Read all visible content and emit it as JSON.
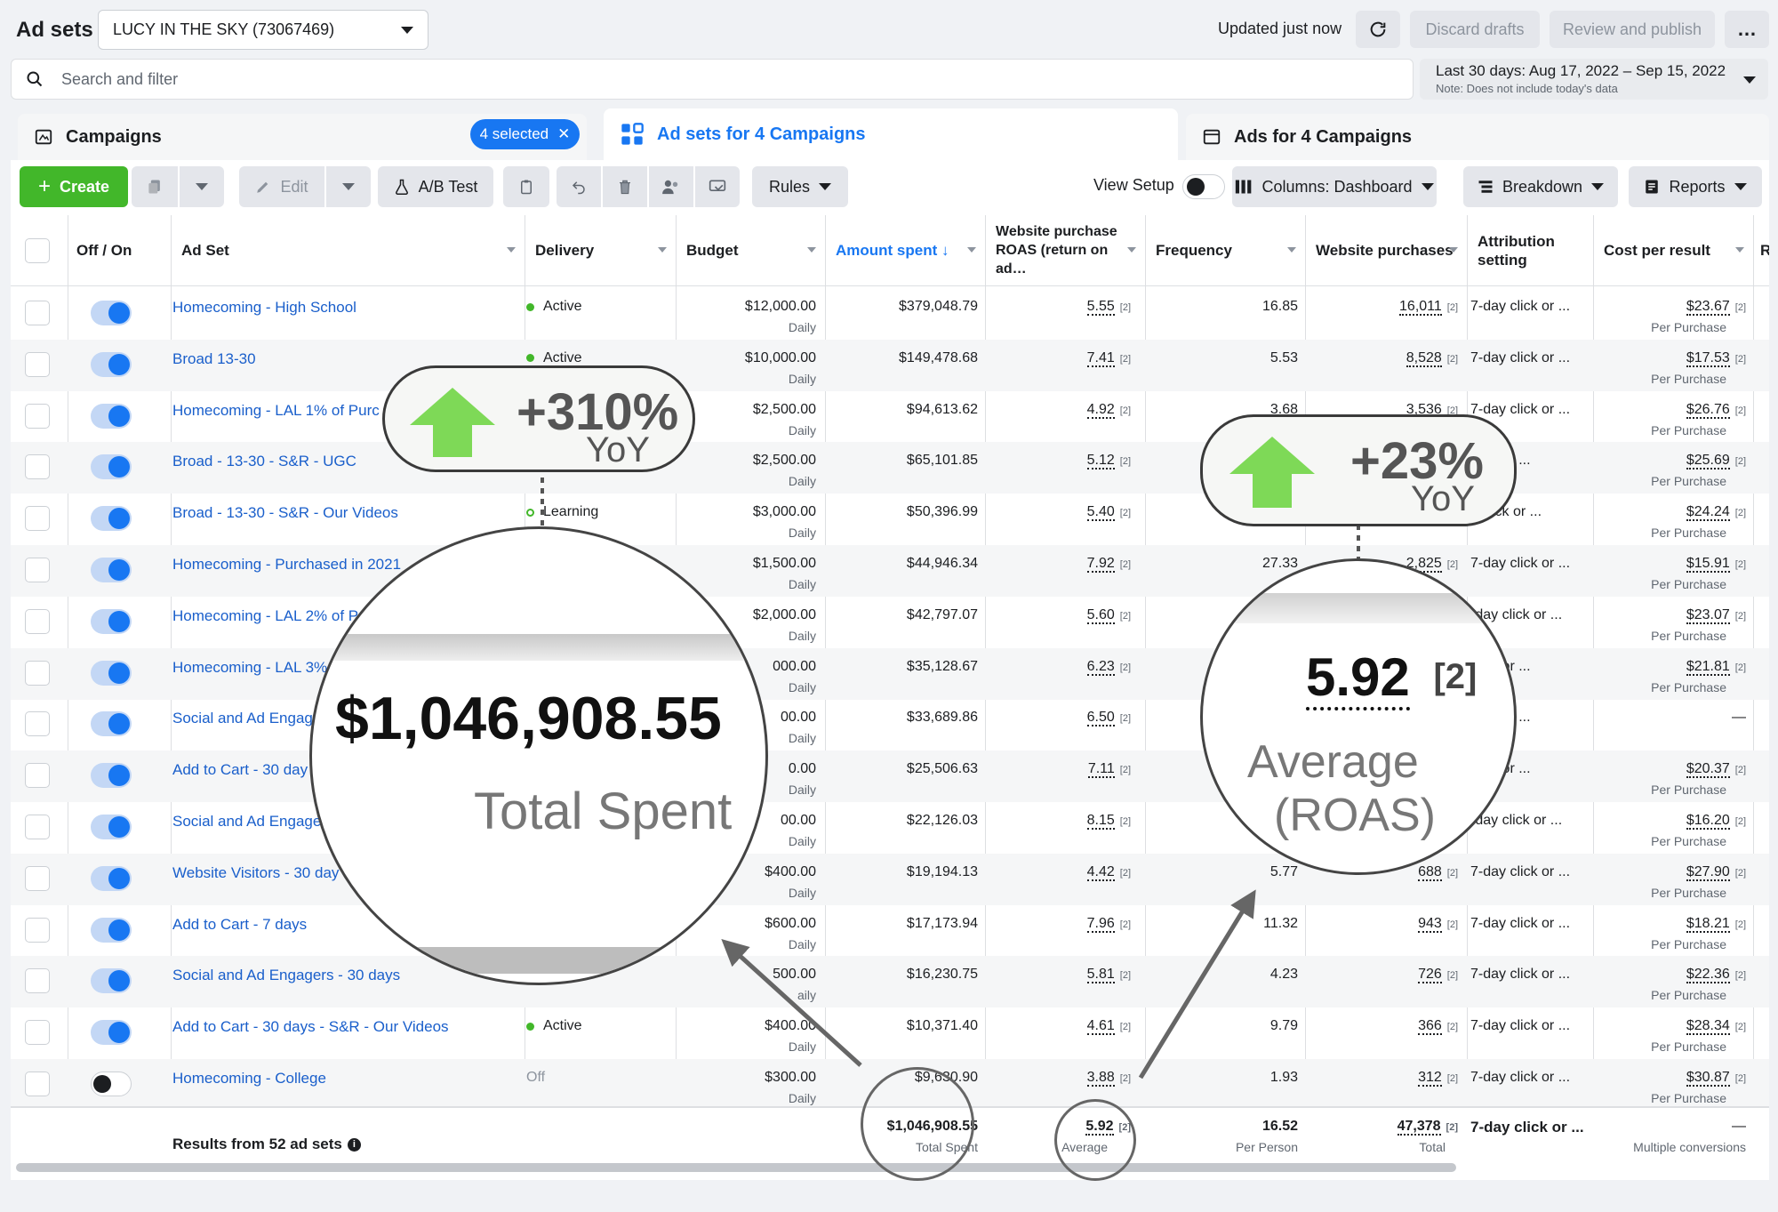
{
  "header": {
    "title": "Ad sets",
    "account": "LUCY IN THE SKY (73067469)",
    "updated": "Updated just now",
    "discard": "Discard drafts",
    "review": "Review and publish",
    "more": "…"
  },
  "search": {
    "placeholder": "Search and filter"
  },
  "date_range": {
    "label": "Last 30 days: Aug 17, 2022 – Sep 15, 2022",
    "note": "Note: Does not include today's data"
  },
  "tabs": {
    "campaigns": "Campaigns",
    "selected": "4 selected",
    "adsets": "Ad sets for 4 Campaigns",
    "ads": "Ads for 4 Campaigns"
  },
  "toolbar": {
    "create": "Create",
    "edit": "Edit",
    "ab_test": "A/B Test",
    "rules": "Rules",
    "view_setup": "View Setup",
    "columns": "Columns: Dashboard",
    "breakdown": "Breakdown",
    "reports": "Reports"
  },
  "columns": {
    "off_on": "Off / On",
    "ad_set": "Ad Set",
    "delivery": "Delivery",
    "budget": "Budget",
    "amount_spent": "Amount spent ↓",
    "roas": "Website purchase ROAS (return on ad…",
    "frequency": "Frequency",
    "purchases": "Website purchases",
    "attribution": "Attribution setting",
    "cost_per_result": "Cost per result",
    "extra": "R"
  },
  "rows": [
    {
      "name": "Homecoming - High School",
      "on": true,
      "delivery": "Active",
      "dstate": "active",
      "budget": "$12,000.00",
      "budget_type": "Daily",
      "spent": "$379,048.79",
      "roas": "5.55",
      "fn": "[2]",
      "freq": "16.85",
      "purchases": "16,011",
      "attr": "7-day click or ...",
      "cpr": "$23.67",
      "cpr_sub": "Per Purchase"
    },
    {
      "name": "Broad 13-30",
      "on": true,
      "delivery": "Active",
      "dstate": "active",
      "budget": "$10,000.00",
      "budget_type": "Daily",
      "spent": "$149,478.68",
      "roas": "7.41",
      "fn": "[2]",
      "freq": "5.53",
      "purchases": "8,528",
      "attr": "7-day click or ...",
      "cpr": "$17.53",
      "cpr_sub": "Per Purchase"
    },
    {
      "name": "Homecoming - LAL 1% of Purc",
      "on": true,
      "delivery": "",
      "dstate": "",
      "budget": "$2,500.00",
      "budget_type": "Daily",
      "spent": "$94,613.62",
      "roas": "4.92",
      "fn": "[2]",
      "freq": "3.68",
      "purchases": "3,536",
      "attr": "7-day click or ...",
      "cpr": "$26.76",
      "cpr_sub": "Per Purchase"
    },
    {
      "name": "Broad - 13-30 - S&R - UGC",
      "on": true,
      "delivery": "",
      "dstate": "",
      "budget": "$2,500.00",
      "budget_type": "Daily",
      "spent": "$65,101.85",
      "roas": "5.12",
      "fn": "[2]",
      "freq": "",
      "purchases": "",
      "attr": "click or ...",
      "cpr": "$25.69",
      "cpr_sub": "Per Purchase"
    },
    {
      "name": "Broad - 13-30 - S&R - Our Videos",
      "on": true,
      "delivery": "Learning",
      "dstate": "learning",
      "budget": "$3,000.00",
      "budget_type": "Daily",
      "spent": "$50,396.99",
      "roas": "5.40",
      "fn": "[2]",
      "freq": "",
      "purchases": "",
      "attr": "y click or ...",
      "cpr": "$24.24",
      "cpr_sub": "Per Purchase"
    },
    {
      "name": "Homecoming - Purchased in 2021",
      "on": true,
      "delivery": "",
      "dstate": "",
      "budget": "$1,500.00",
      "budget_type": "Daily",
      "spent": "$44,946.34",
      "roas": "7.92",
      "fn": "[2]",
      "freq": "27.33",
      "purchases": "2,825",
      "attr": "7-day click or ...",
      "cpr": "$15.91",
      "cpr_sub": "Per Purchase"
    },
    {
      "name": "Homecoming - LAL 2% of P",
      "on": true,
      "delivery": "",
      "dstate": "",
      "budget": "$2,000.00",
      "budget_type": "Daily",
      "spent": "$42,797.07",
      "roas": "5.60",
      "fn": "[2]",
      "freq": "",
      "purchases": "",
      "attr": "-day click or ...",
      "cpr": "$23.07",
      "cpr_sub": "Per Purchase"
    },
    {
      "name": "Homecoming - LAL 3%",
      "on": true,
      "delivery": "",
      "dstate": "",
      "budget": "000.00",
      "budget_type": "Daily",
      "spent": "$35,128.67",
      "roas": "6.23",
      "fn": "[2]",
      "freq": "",
      "purchases": "",
      "attr": "click or ...",
      "cpr": "$21.81",
      "cpr_sub": "Per Purchase"
    },
    {
      "name": "Social and Ad Engag",
      "on": true,
      "delivery": "",
      "dstate": "",
      "budget": "00.00",
      "budget_type": "Daily",
      "spent": "$33,689.86",
      "roas": "6.50",
      "fn": "[2]",
      "freq": "",
      "purchases": "",
      "attr": "click or ...",
      "cpr": "—",
      "cpr_sub": ""
    },
    {
      "name": "Add to Cart - 30 day",
      "on": true,
      "delivery": "",
      "dstate": "",
      "budget": "0.00",
      "budget_type": "Daily",
      "spent": "$25,506.63",
      "roas": "7.11",
      "fn": "[2]",
      "freq": "",
      "purchases": "",
      "attr": "click or ...",
      "cpr": "$20.37",
      "cpr_sub": "Per Purchase"
    },
    {
      "name": "Social and Ad Engage",
      "on": true,
      "delivery": "",
      "dstate": "",
      "budget": "00.00",
      "budget_type": "Daily",
      "spent": "$22,126.03",
      "roas": "8.15",
      "fn": "[2]",
      "freq": "",
      "purchases": "",
      "attr": "-day click or ...",
      "cpr": "$16.20",
      "cpr_sub": "Per Purchase"
    },
    {
      "name": "Website Visitors - 30 day",
      "on": true,
      "delivery": "",
      "dstate": "",
      "budget": "$400.00",
      "budget_type": "Daily",
      "spent": "$19,194.13",
      "roas": "4.42",
      "fn": "[2]",
      "freq": "5.77",
      "purchases": "688",
      "attr": "7-day click or ...",
      "cpr": "$27.90",
      "cpr_sub": "Per Purchase"
    },
    {
      "name": "Add to Cart - 7 days",
      "on": true,
      "delivery": "",
      "dstate": "",
      "budget": "$600.00",
      "budget_type": "Daily",
      "spent": "$17,173.94",
      "roas": "7.96",
      "fn": "[2]",
      "freq": "11.32",
      "purchases": "943",
      "attr": "7-day click or ...",
      "cpr": "$18.21",
      "cpr_sub": "Per Purchase"
    },
    {
      "name": "Social and Ad Engagers - 30 days",
      "on": true,
      "delivery": "",
      "dstate": "",
      "budget": "500.00",
      "budget_type": "aily",
      "spent": "$16,230.75",
      "roas": "5.81",
      "fn": "[2]",
      "freq": "4.23",
      "purchases": "726",
      "attr": "7-day click or ...",
      "cpr": "$22.36",
      "cpr_sub": "Per Purchase"
    },
    {
      "name": "Add to Cart - 30 days - S&R - Our Videos",
      "on": true,
      "delivery": "Active",
      "dstate": "active",
      "budget": "$400.00",
      "budget_type": "Daily",
      "spent": "$10,371.40",
      "roas": "4.61",
      "fn": "[2]",
      "freq": "9.79",
      "purchases": "366",
      "attr": "7-day click or ...",
      "cpr": "$28.34",
      "cpr_sub": "Per Purchase"
    },
    {
      "name": "Homecoming - College",
      "on": false,
      "delivery": "Off",
      "dstate": "off",
      "budget": "$300.00",
      "budget_type": "Daily",
      "spent": "$9,630.90",
      "roas": "3.88",
      "fn": "[2]",
      "freq": "1.93",
      "purchases": "312",
      "attr": "7-day click or ...",
      "cpr": "$30.87",
      "cpr_sub": "Per Purchase"
    }
  ],
  "totals": {
    "label": "Results from 52 ad sets",
    "spent": "$1,046,908.55",
    "spent_sub": "Total Spent",
    "roas": "5.92",
    "roas_fn": "[2]",
    "roas_sub": "Average",
    "freq": "16.52",
    "freq_sub": "Per Person",
    "purchases": "47,378",
    "purchases_fn": "[2]",
    "purchases_sub": "Total",
    "attr": "7-day click or ...",
    "cpr": "—",
    "cpr_sub": "Multiple conversions"
  },
  "annotations": {
    "left_pct": "+310%",
    "left_yoy": "YoY",
    "left_mag_value": "$1,046,908.55",
    "left_mag_label": "Total Spent",
    "right_pct": "+23%",
    "right_yoy": "YoY",
    "right_mag_value": "5.92",
    "right_mag_fn": "[2]",
    "right_mag_label1": "Average",
    "right_mag_label2": "(ROAS)"
  },
  "colors": {
    "accent": "#1877f2",
    "create": "#42b72a",
    "arrow_up": "#7ed957"
  }
}
